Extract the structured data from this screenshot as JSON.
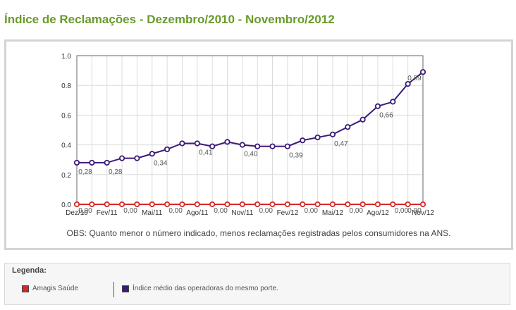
{
  "page": {
    "title": "Índice de Reclamações - Dezembro/2010 - Novembro/2012",
    "note": "OBS: Quanto menor o número indicado, menos reclamações registradas pelos consumidores na ANS."
  },
  "legend": {
    "title": "Legenda:",
    "items": [
      {
        "label": "Amagis Saúde",
        "color": "#d42a2a"
      },
      {
        "label": "Índice médio das operadoras do mesmo porte.",
        "color": "#3b1a78"
      }
    ]
  },
  "chart_data": {
    "type": "line",
    "x_tick_labels": [
      "Dez/10",
      "Fev/11",
      "Mai/11",
      "Ago/11",
      "Nov/11",
      "Fev/12",
      "Mai/12",
      "Ago/12",
      "Nov/12"
    ],
    "x_tick_index": [
      0,
      2,
      5,
      8,
      11,
      14,
      17,
      20,
      23
    ],
    "y_ticks": [
      "0.0",
      "0.2",
      "0.4",
      "0.6",
      "0.8",
      "1.0"
    ],
    "ylim": [
      0,
      1
    ],
    "grid": true,
    "point_count": 24,
    "series": [
      {
        "name": "Amagis Saúde",
        "color": "#d42a2a",
        "values": [
          0,
          0,
          0,
          0,
          0,
          0,
          0,
          0,
          0,
          0,
          0,
          0,
          0,
          0,
          0,
          0,
          0,
          0,
          0,
          0,
          0,
          0,
          0,
          0
        ],
        "labels": [
          {
            "index": 0,
            "text": "0,00"
          },
          {
            "index": 3,
            "text": "0,00"
          },
          {
            "index": 6,
            "text": "0,00"
          },
          {
            "index": 9,
            "text": "0,00"
          },
          {
            "index": 12,
            "text": "0,00"
          },
          {
            "index": 15,
            "text": "0,00"
          },
          {
            "index": 18,
            "text": "0,00"
          },
          {
            "index": 21,
            "text": "0,00"
          },
          {
            "index": 23,
            "text": "0,00"
          }
        ]
      },
      {
        "name": "Índice médio das operadoras do mesmo porte.",
        "color": "#3b1a78",
        "values": [
          0.28,
          0.28,
          0.28,
          0.31,
          0.31,
          0.34,
          0.37,
          0.41,
          0.41,
          0.39,
          0.42,
          0.4,
          0.39,
          0.39,
          0.39,
          0.43,
          0.45,
          0.47,
          0.52,
          0.57,
          0.66,
          0.69,
          0.81,
          0.89
        ],
        "labels": [
          {
            "index": 0,
            "text": "0,28"
          },
          {
            "index": 2,
            "text": "0,28"
          },
          {
            "index": 5,
            "text": "0,34"
          },
          {
            "index": 8,
            "text": "0,41"
          },
          {
            "index": 11,
            "text": "0,40"
          },
          {
            "index": 14,
            "text": "0,39"
          },
          {
            "index": 17,
            "text": "0,47"
          },
          {
            "index": 20,
            "text": "0,66"
          },
          {
            "index": 23,
            "text": "0,89"
          }
        ]
      }
    ]
  }
}
